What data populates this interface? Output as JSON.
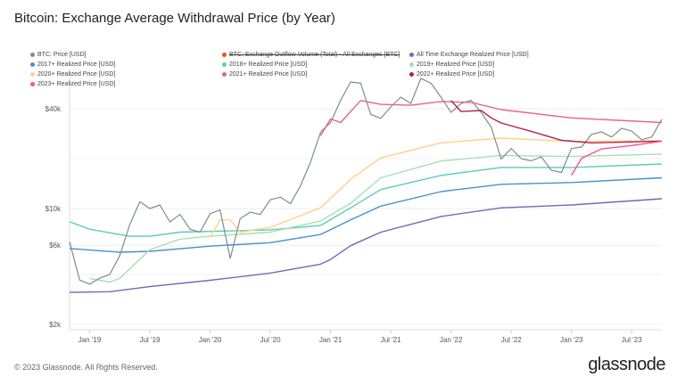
{
  "title": "Bitcoin: Exchange Average Withdrawal Price (by Year)",
  "footer": "© 2023 Glassnode. All Rights Reserved.",
  "logo": "glassnode",
  "chart_data": {
    "type": "line",
    "title": "Bitcoin: Exchange Average Withdrawal Price (by Year)",
    "y_scale": "log",
    "ylim": [
      2000,
      68000
    ],
    "xlim": [
      "2018-11",
      "2023-10"
    ],
    "y_ticks": [
      {
        "v": 2000,
        "label": "$2k"
      },
      {
        "v": 6000,
        "label": "$6k"
      },
      {
        "v": 10000,
        "label": "$10k"
      },
      {
        "v": 40000,
        "label": "$40k"
      }
    ],
    "x_ticks": [
      {
        "v": "2019-01",
        "label": "Jan '19"
      },
      {
        "v": "2019-07",
        "label": "Jul '19"
      },
      {
        "v": "2020-01",
        "label": "Jan '20"
      },
      {
        "v": "2020-07",
        "label": "Jul '20"
      },
      {
        "v": "2021-01",
        "label": "Jan '21"
      },
      {
        "v": "2021-07",
        "label": "Jul '21"
      },
      {
        "v": "2022-01",
        "label": "Jan '22"
      },
      {
        "v": "2022-07",
        "label": "Jul '22"
      },
      {
        "v": "2023-01",
        "label": "Jan '23"
      },
      {
        "v": "2023-07",
        "label": "Jul '23"
      }
    ],
    "grid": true,
    "legend_position": "top",
    "series": [
      {
        "name": "BTC: Price [USD]",
        "color": "#7f8c8d",
        "points": [
          [
            "2018-11",
            6300
          ],
          [
            "2018-12",
            3700
          ],
          [
            "2019-01",
            3500
          ],
          [
            "2019-02",
            3800
          ],
          [
            "2019-03",
            4000
          ],
          [
            "2019-04",
            5200
          ],
          [
            "2019-05",
            8000
          ],
          [
            "2019-06",
            11000
          ],
          [
            "2019-07",
            10000
          ],
          [
            "2019-08",
            10500
          ],
          [
            "2019-09",
            8300
          ],
          [
            "2019-10",
            9200
          ],
          [
            "2019-11",
            7500
          ],
          [
            "2019-12",
            7200
          ],
          [
            "2020-01",
            9300
          ],
          [
            "2020-02",
            9800
          ],
          [
            "2020-03",
            5000
          ],
          [
            "2020-04",
            8700
          ],
          [
            "2020-05",
            9500
          ],
          [
            "2020-06",
            9200
          ],
          [
            "2020-07",
            11300
          ],
          [
            "2020-08",
            11700
          ],
          [
            "2020-09",
            10700
          ],
          [
            "2020-10",
            13700
          ],
          [
            "2020-11",
            19000
          ],
          [
            "2020-12",
            28900
          ],
          [
            "2021-01",
            33000
          ],
          [
            "2021-02",
            45000
          ],
          [
            "2021-03",
            58000
          ],
          [
            "2021-04",
            57000
          ],
          [
            "2021-05",
            37000
          ],
          [
            "2021-06",
            35000
          ],
          [
            "2021-07",
            41000
          ],
          [
            "2021-08",
            47000
          ],
          [
            "2021-09",
            43000
          ],
          [
            "2021-10",
            61000
          ],
          [
            "2021-11",
            57000
          ],
          [
            "2021-12",
            47000
          ],
          [
            "2022-01",
            38000
          ],
          [
            "2022-02",
            43000
          ],
          [
            "2022-03",
            45000
          ],
          [
            "2022-04",
            38000
          ],
          [
            "2022-05",
            31000
          ],
          [
            "2022-06",
            19900
          ],
          [
            "2022-07",
            23000
          ],
          [
            "2022-08",
            20000
          ],
          [
            "2022-09",
            19400
          ],
          [
            "2022-10",
            20500
          ],
          [
            "2022-11",
            17000
          ],
          [
            "2022-12",
            16500
          ],
          [
            "2023-01",
            23000
          ],
          [
            "2023-02",
            23500
          ],
          [
            "2023-03",
            28000
          ],
          [
            "2023-04",
            29000
          ],
          [
            "2023-05",
            27000
          ],
          [
            "2023-06",
            30500
          ],
          [
            "2023-07",
            29300
          ],
          [
            "2023-08",
            26000
          ],
          [
            "2023-09",
            27000
          ],
          [
            "2023-10",
            34500
          ]
        ]
      },
      {
        "name": "BTC: Exchange Outflow Volume (Total) - All Exchanges [BTC]",
        "color": "#f0520e",
        "hidden": true,
        "points": []
      },
      {
        "name": "All Time Exchange Realized Price [USD]",
        "color": "#7b64b8",
        "points": [
          [
            "2018-11",
            3120
          ],
          [
            "2019-03",
            3150
          ],
          [
            "2019-07",
            3380
          ],
          [
            "2020-01",
            3690
          ],
          [
            "2020-07",
            4080
          ],
          [
            "2020-12",
            4620
          ],
          [
            "2021-01",
            4930
          ],
          [
            "2021-03",
            5970
          ],
          [
            "2021-06",
            7200
          ],
          [
            "2021-12",
            8950
          ],
          [
            "2022-06",
            10100
          ],
          [
            "2023-01",
            10500
          ],
          [
            "2023-10",
            11450
          ]
        ]
      },
      {
        "name": "2017+ Realized Price [USD]",
        "color": "#4a90c8",
        "points": [
          [
            "2018-11",
            5740
          ],
          [
            "2019-04",
            5450
          ],
          [
            "2019-07",
            5520
          ],
          [
            "2020-01",
            5930
          ],
          [
            "2020-07",
            6220
          ],
          [
            "2020-12",
            6970
          ],
          [
            "2021-03",
            8540
          ],
          [
            "2021-06",
            10340
          ],
          [
            "2021-12",
            12650
          ],
          [
            "2022-06",
            14000
          ],
          [
            "2023-01",
            14350
          ],
          [
            "2023-10",
            15320
          ]
        ]
      },
      {
        "name": "2018+ Realized Price [USD]",
        "color": "#5ecbbd",
        "points": [
          [
            "2018-11",
            8320
          ],
          [
            "2019-01",
            7500
          ],
          [
            "2019-05",
            6800
          ],
          [
            "2019-07",
            6800
          ],
          [
            "2019-10",
            7200
          ],
          [
            "2020-07",
            7440
          ],
          [
            "2020-12",
            7900
          ],
          [
            "2021-03",
            10100
          ],
          [
            "2021-06",
            13010
          ],
          [
            "2021-12",
            15850
          ],
          [
            "2022-06",
            17700
          ],
          [
            "2023-01",
            17700
          ],
          [
            "2023-10",
            18560
          ]
        ]
      },
      {
        "name": "2019+ Realized Price [USD]",
        "color": "#a6e0b0",
        "points": [
          [
            "2019-01",
            3790
          ],
          [
            "2019-03",
            3600
          ],
          [
            "2019-04",
            3790
          ],
          [
            "2019-07",
            5650
          ],
          [
            "2019-10",
            6540
          ],
          [
            "2020-01",
            6800
          ],
          [
            "2020-07",
            7200
          ],
          [
            "2020-12",
            8420
          ],
          [
            "2021-03",
            10760
          ],
          [
            "2021-06",
            15320
          ],
          [
            "2021-12",
            19330
          ],
          [
            "2022-06",
            20900
          ],
          [
            "2023-01",
            20600
          ],
          [
            "2023-10",
            21300
          ]
        ]
      },
      {
        "name": "2020+ Realized Price [USD]",
        "color": "#ffd08a",
        "points": [
          [
            "2020-01",
            6700
          ],
          [
            "2020-02",
            8540
          ],
          [
            "2020-03",
            8540
          ],
          [
            "2020-04",
            7200
          ],
          [
            "2020-07",
            7700
          ],
          [
            "2020-12",
            10100
          ],
          [
            "2021-03",
            15000
          ],
          [
            "2021-06",
            20200
          ],
          [
            "2021-12",
            24900
          ],
          [
            "2022-06",
            26600
          ],
          [
            "2023-01",
            25400
          ],
          [
            "2023-10",
            25700
          ]
        ]
      },
      {
        "name": "2021+ Realized Price [USD]",
        "color": "#e8667a",
        "points": [
          [
            "2020-12",
            27500
          ],
          [
            "2021-01",
            34700
          ],
          [
            "2021-02",
            33000
          ],
          [
            "2021-04",
            44800
          ],
          [
            "2021-06",
            42500
          ],
          [
            "2021-09",
            42000
          ],
          [
            "2021-12",
            44200
          ],
          [
            "2022-03",
            43700
          ],
          [
            "2022-06",
            39500
          ],
          [
            "2023-01",
            35200
          ],
          [
            "2023-10",
            33000
          ]
        ]
      },
      {
        "name": "2022+ Realized Price [USD]",
        "color": "#b0224f",
        "points": [
          [
            "2022-01",
            44800
          ],
          [
            "2022-02",
            38500
          ],
          [
            "2022-04",
            39000
          ],
          [
            "2022-05",
            35200
          ],
          [
            "2022-06",
            32800
          ],
          [
            "2022-09",
            29200
          ],
          [
            "2022-12",
            25800
          ],
          [
            "2023-03",
            24900
          ],
          [
            "2023-10",
            25500
          ]
        ]
      },
      {
        "name": "2023+ Realized Price [USD]",
        "color": "#ff4d8b",
        "points": [
          [
            "2023-01",
            15850
          ],
          [
            "2023-02",
            20100
          ],
          [
            "2023-04",
            22900
          ],
          [
            "2023-07",
            24000
          ],
          [
            "2023-10",
            25500
          ]
        ]
      }
    ]
  }
}
